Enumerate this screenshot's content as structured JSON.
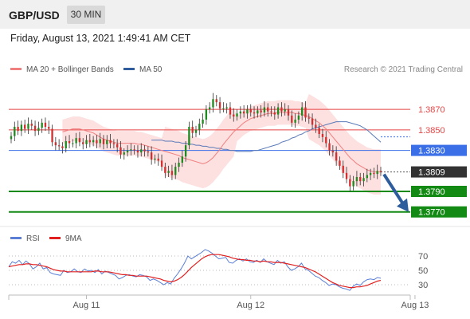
{
  "header": {
    "symbol": "GBP/USD",
    "timeframe": "30 MIN",
    "datetime": "Friday, August 13, 2021 1:49:41 AM CET"
  },
  "legend": {
    "items": [
      {
        "label": "MA 20 + Bollinger Bands",
        "color": "#f08080"
      },
      {
        "label": "MA 50",
        "color": "#2f5d9e"
      }
    ],
    "credit": "Research © 2021 Trading Central"
  },
  "rsi_legend": {
    "items": [
      {
        "label": "RSI",
        "color": "#5b7fd6"
      },
      {
        "label": "9MA",
        "color": "#e02020"
      }
    ]
  },
  "colors": {
    "resistance": "#e84545",
    "pivot": "#3b6fe8",
    "support": "#138a13",
    "current": "#333333",
    "arrow": "#2e5d9e",
    "bollinger_fill": "#fde0e0",
    "bull": "#1f8a1f",
    "bear": "#d23030"
  },
  "chart_data": [
    {
      "type": "candlestick",
      "title": "",
      "ylim": [
        1.3762,
        1.3902
      ],
      "levels": [
        {
          "value": 1.387,
          "label": "1.3870",
          "kind": "resistance"
        },
        {
          "value": 1.385,
          "label": "1.3850",
          "kind": "resistance"
        },
        {
          "value": 1.383,
          "label": "1.3830",
          "kind": "pivot"
        },
        {
          "value": 1.3809,
          "label": "1.3809",
          "kind": "current"
        },
        {
          "value": 1.379,
          "label": "1.3790",
          "kind": "support"
        },
        {
          "value": 1.377,
          "label": "1.3770",
          "kind": "support"
        }
      ],
      "x_ticks": [
        {
          "label": "Aug 11",
          "index": 22
        },
        {
          "label": "Aug 12",
          "index": 70
        },
        {
          "label": "Aug 13",
          "index": 118
        }
      ],
      "series": [
        {
          "name": "Price",
          "close": [
            1.3844,
            1.3853,
            1.3849,
            1.3855,
            1.3851,
            1.3856,
            1.3854,
            1.3849,
            1.3852,
            1.3857,
            1.3853,
            1.3851,
            1.3838,
            1.3835,
            1.3834,
            1.3832,
            1.3839,
            1.3837,
            1.3837,
            1.3842,
            1.3838,
            1.3836,
            1.384,
            1.3838,
            1.384,
            1.3837,
            1.3841,
            1.3836,
            1.384,
            1.3837,
            1.3836,
            1.3833,
            1.3826,
            1.3828,
            1.383,
            1.3831,
            1.383,
            1.3828,
            1.3831,
            1.3829,
            1.3828,
            1.3821,
            1.3822,
            1.382,
            1.3814,
            1.3808,
            1.381,
            1.3806,
            1.3814,
            1.3818,
            1.3824,
            1.3835,
            1.3853,
            1.3847,
            1.385,
            1.3856,
            1.386,
            1.387,
            1.3872,
            1.388,
            1.3877,
            1.3871,
            1.3871,
            1.3872,
            1.3865,
            1.3863,
            1.3866,
            1.3868,
            1.3866,
            1.387,
            1.3867,
            1.3866,
            1.3869,
            1.3867,
            1.3872,
            1.3868,
            1.3867,
            1.3865,
            1.3872,
            1.3868,
            1.387,
            1.3864,
            1.3857,
            1.386,
            1.3864,
            1.3872,
            1.3862,
            1.3861,
            1.3855,
            1.3852,
            1.3846,
            1.3843,
            1.3837,
            1.383,
            1.3828,
            1.382,
            1.3815,
            1.3808,
            1.3802,
            1.3795,
            1.38,
            1.3804,
            1.38,
            1.3803,
            1.3806,
            1.3808,
            1.3807,
            1.381,
            1.3809
          ]
        },
        {
          "name": "MA 20",
          "values": [
            1.3848,
            1.3849,
            1.385,
            1.3851,
            1.3851,
            1.3851,
            1.385,
            1.3849,
            1.3848,
            1.3847,
            1.3845,
            1.3843,
            1.3841,
            1.384,
            1.3839,
            1.3838,
            1.3837,
            1.3837,
            1.3837,
            1.3837,
            1.3837,
            1.3837,
            1.3836,
            1.3836,
            1.3835,
            1.3834,
            1.3833,
            1.3832,
            1.3831,
            1.383,
            1.3829,
            1.3828,
            1.3827,
            1.3826,
            1.3825,
            1.3823,
            1.3822,
            1.3821,
            1.382,
            1.3819,
            1.3818,
            1.3817,
            1.3818,
            1.382,
            1.3823,
            1.3827,
            1.3831,
            1.3836,
            1.384,
            1.3844,
            1.3848,
            1.3851,
            1.3854,
            1.3857,
            1.3859,
            1.3861,
            1.3862,
            1.3863,
            1.3864,
            1.3865,
            1.3866,
            1.3866,
            1.3866,
            1.3867,
            1.3867,
            1.3867,
            1.3867,
            1.3867,
            1.3866,
            1.3866,
            1.3865,
            1.3864,
            1.3863,
            1.3861,
            1.3859,
            1.3857,
            1.3854,
            1.3851,
            1.3847,
            1.3843,
            1.3839,
            1.3835,
            1.3831,
            1.3827,
            1.3823,
            1.382,
            1.3817,
            1.3815,
            1.3813,
            1.3811,
            1.381,
            1.3809,
            1.3809,
            1.3809
          ]
        },
        {
          "name": "MA 50",
          "values": [
            1.384,
            1.384,
            1.384,
            1.384,
            1.3839,
            1.3839,
            1.3839,
            1.3838,
            1.3838,
            1.3837,
            1.3837,
            1.3836,
            1.3836,
            1.3835,
            1.3835,
            1.3834,
            1.3834,
            1.3833,
            1.3833,
            1.3832,
            1.3832,
            1.3831,
            1.3831,
            1.383,
            1.383,
            1.3829,
            1.3829,
            1.3829,
            1.3829,
            1.3829,
            1.383,
            1.383,
            1.3831,
            1.3832,
            1.3833,
            1.3834,
            1.3835,
            1.3836,
            1.3838,
            1.3839,
            1.384,
            1.3842,
            1.3843,
            1.3845,
            1.3846,
            1.3848,
            1.3849,
            1.3851,
            1.3852,
            1.3853,
            1.3854,
            1.3855,
            1.3856,
            1.3857,
            1.3858,
            1.3858,
            1.3858,
            1.3858,
            1.3857,
            1.3856,
            1.3855,
            1.3854,
            1.3852,
            1.385,
            1.3847,
            1.3844,
            1.3841,
            1.3838
          ]
        }
      ]
    },
    {
      "type": "line",
      "title": "",
      "ylim": [
        20,
        80
      ],
      "levels": [
        {
          "value": 70,
          "label": "70"
        },
        {
          "value": 50,
          "label": "50"
        },
        {
          "value": 30,
          "label": "30"
        }
      ],
      "series": [
        {
          "name": "RSI",
          "values": [
            55,
            62,
            60,
            64,
            58,
            63,
            59,
            52,
            55,
            60,
            52,
            54,
            47,
            45,
            44,
            43,
            50,
            47,
            48,
            52,
            48,
            47,
            52,
            49,
            50,
            47,
            51,
            45,
            49,
            47,
            45,
            43,
            38,
            40,
            43,
            44,
            42,
            41,
            44,
            43,
            41,
            36,
            38,
            36,
            33,
            30,
            33,
            31,
            39,
            45,
            52,
            60,
            70,
            66,
            69,
            72,
            75,
            79,
            77,
            74,
            70,
            66,
            67,
            68,
            61,
            60,
            64,
            66,
            63,
            66,
            62,
            61,
            64,
            61,
            66,
            62,
            60,
            58,
            64,
            60,
            62,
            55,
            50,
            52,
            55,
            60,
            52,
            50,
            46,
            42,
            40,
            36,
            33,
            29,
            31,
            30,
            27,
            25,
            24,
            22,
            28,
            31,
            29,
            34,
            37,
            38,
            37,
            40,
            39
          ]
        },
        {
          "name": "9MA",
          "values": [
            55,
            56,
            57,
            58,
            58,
            59,
            59,
            58,
            58,
            57,
            56,
            55,
            53,
            51,
            50,
            49,
            49,
            48,
            48,
            48,
            48,
            48,
            48,
            48,
            48,
            49,
            49,
            48,
            48,
            48,
            47,
            46,
            45,
            44,
            44,
            43,
            43,
            42,
            42,
            42,
            42,
            41,
            40,
            39,
            38,
            36,
            35,
            34,
            35,
            37,
            40,
            44,
            49,
            54,
            58,
            62,
            66,
            69,
            71,
            72,
            72,
            72,
            71,
            70,
            69,
            67,
            66,
            65,
            65,
            64,
            64,
            63,
            63,
            62,
            63,
            62,
            62,
            61,
            61,
            61,
            60,
            59,
            58,
            57,
            56,
            55,
            54,
            52,
            50,
            48,
            45,
            42,
            39,
            36,
            33,
            31,
            29,
            28,
            27,
            26,
            26,
            27,
            27,
            28,
            29,
            31,
            33,
            35,
            36
          ]
        }
      ]
    }
  ]
}
